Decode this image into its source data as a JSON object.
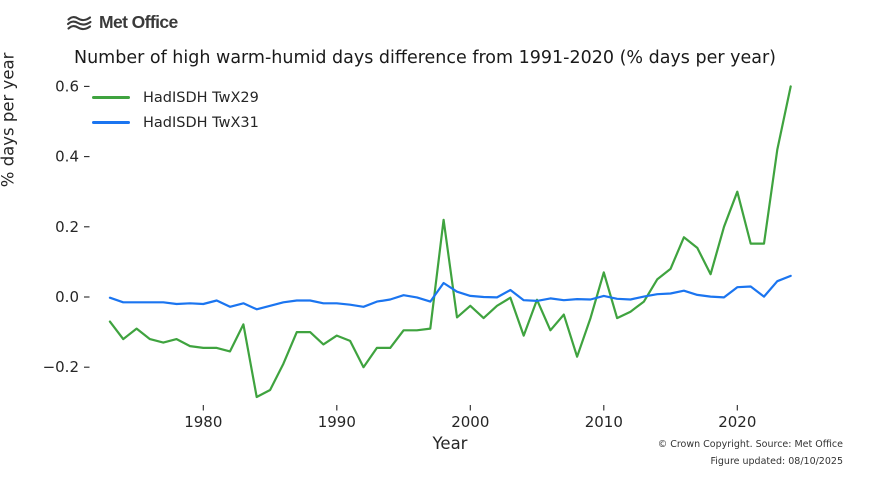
{
  "header": {
    "logo_text": "Met Office",
    "logo_icon": "wave-icon",
    "logo_color": "#3a3a3a"
  },
  "footer": {
    "line1": "© Crown Copyright. Source: Met Office",
    "line2": "Figure updated: 08/10/2025"
  },
  "chart_data": {
    "type": "line",
    "title": "Number of high warm-humid days difference from 1991-2020 (% days per year)",
    "xlabel": "Year",
    "ylabel": "% days per year",
    "grid": false,
    "legend_position": "upper-left",
    "xlim": [
      1971.5,
      2026.5
    ],
    "ylim": [
      -0.31,
      0.62
    ],
    "x_ticks": [
      1980,
      1990,
      2000,
      2010,
      2020
    ],
    "x_tick_labels": [
      "1980",
      "1990",
      "2000",
      "2010",
      "2020"
    ],
    "y_ticks": [
      0.6,
      0.4,
      0.2,
      0.0,
      -0.2
    ],
    "y_tick_labels": [
      "0.6",
      "0.4",
      "0.2",
      "0.0",
      "−0.2"
    ],
    "tick_color": "#262626",
    "x": [
      1973,
      1974,
      1975,
      1976,
      1977,
      1978,
      1979,
      1980,
      1981,
      1982,
      1983,
      1984,
      1985,
      1986,
      1987,
      1988,
      1989,
      1990,
      1991,
      1992,
      1993,
      1994,
      1995,
      1996,
      1997,
      1998,
      1999,
      2000,
      2001,
      2002,
      2003,
      2004,
      2005,
      2006,
      2007,
      2008,
      2009,
      2010,
      2011,
      2012,
      2013,
      2014,
      2015,
      2016,
      2017,
      2018,
      2019,
      2020,
      2021,
      2022,
      2023,
      2024
    ],
    "series": [
      {
        "name": "HadISDH TwX29",
        "color": "#3fa33f",
        "values": [
          -0.07,
          -0.12,
          -0.09,
          -0.12,
          -0.13,
          -0.12,
          -0.14,
          -0.145,
          -0.145,
          -0.155,
          -0.078,
          -0.285,
          -0.265,
          -0.19,
          -0.1,
          -0.1,
          -0.135,
          -0.11,
          -0.125,
          -0.2,
          -0.145,
          -0.145,
          -0.095,
          -0.095,
          -0.09,
          0.22,
          -0.058,
          -0.025,
          -0.06,
          -0.025,
          -0.002,
          -0.11,
          -0.008,
          -0.095,
          -0.05,
          -0.17,
          -0.06,
          0.07,
          -0.06,
          -0.042,
          -0.013,
          0.05,
          0.08,
          0.17,
          0.14,
          0.065,
          0.2,
          0.3,
          0.152,
          0.152,
          0.42,
          0.6
        ]
      },
      {
        "name": "HadISDH TwX31",
        "color": "#1b75f0",
        "values": [
          -0.002,
          -0.015,
          -0.015,
          -0.015,
          -0.015,
          -0.02,
          -0.018,
          -0.02,
          -0.01,
          -0.028,
          -0.018,
          -0.035,
          -0.025,
          -0.015,
          -0.01,
          -0.01,
          -0.018,
          -0.018,
          -0.022,
          -0.028,
          -0.013,
          -0.007,
          0.005,
          -0.001,
          -0.013,
          0.04,
          0.015,
          0.003,
          0.0,
          -0.001,
          0.02,
          -0.009,
          -0.011,
          -0.004,
          -0.009,
          -0.006,
          -0.007,
          0.003,
          -0.005,
          -0.007,
          0.001,
          0.008,
          0.01,
          0.018,
          0.006,
          0.001,
          -0.001,
          0.028,
          0.03,
          0.001,
          0.045,
          0.06
        ]
      }
    ]
  }
}
